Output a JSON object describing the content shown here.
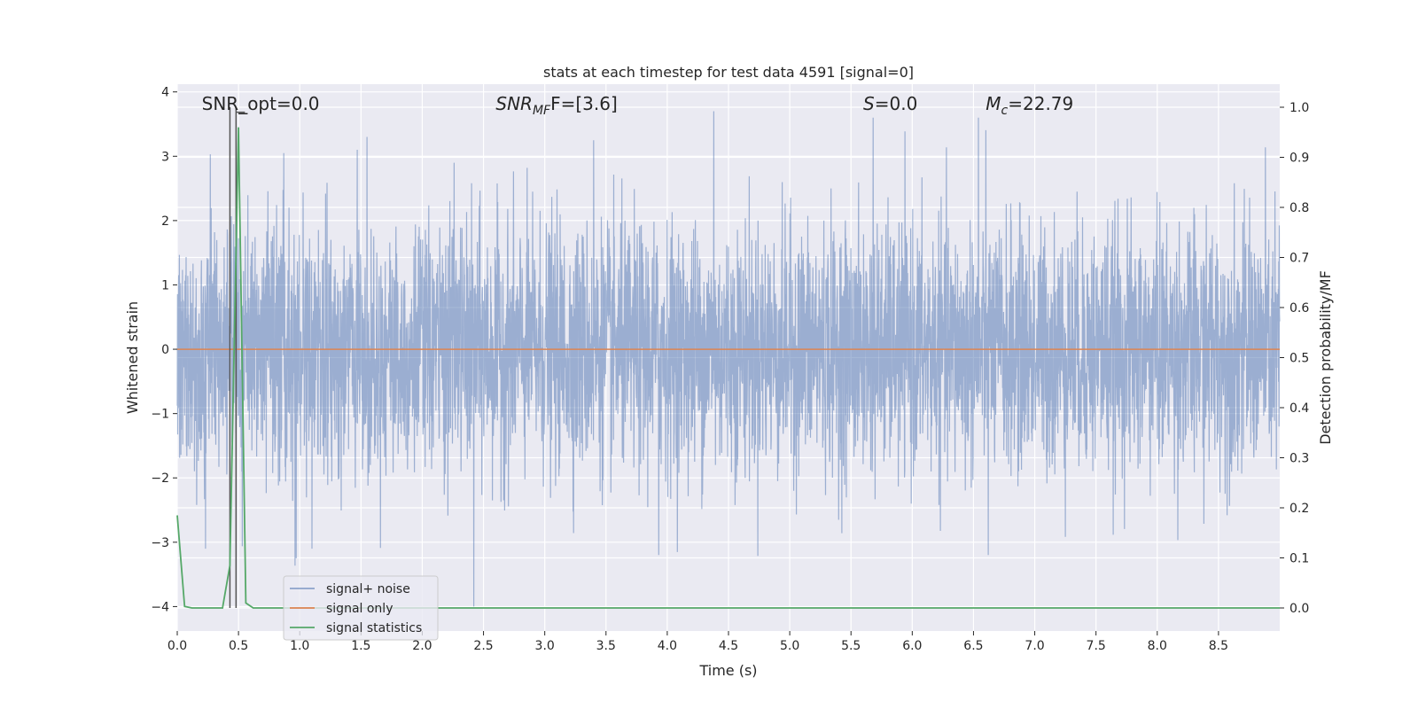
{
  "chart_data": {
    "type": "line",
    "title": "stats at each timestep for test data 4591 [signal=0]",
    "xlabel": "Time (s)",
    "ylabel": "Whitened strain",
    "y2label": "Detection probability/MF",
    "xlim": [
      0.0,
      9.0
    ],
    "ylim": [
      -4.38,
      4.12
    ],
    "y2lim": [
      -0.046,
      1.046
    ],
    "xticks": [
      0.0,
      0.5,
      1.0,
      1.5,
      2.0,
      2.5,
      3.0,
      3.5,
      4.0,
      4.5,
      5.0,
      5.5,
      6.0,
      6.5,
      7.0,
      7.5,
      8.0,
      8.5
    ],
    "yticks": [
      -4,
      -3,
      -2,
      -1,
      0,
      1,
      2,
      3,
      4
    ],
    "y2ticks": [
      0.0,
      0.1,
      0.2,
      0.3,
      0.4,
      0.5,
      0.6,
      0.7,
      0.8,
      0.9,
      1.0
    ],
    "grid": true,
    "legend_position": "lower-left",
    "annotations": [
      {
        "text": "SNR_opt=0.0",
        "x": 0.2
      },
      {
        "text": "SNR_MF=[3.6]",
        "x": 2.6
      },
      {
        "text": "S=0.0",
        "x": 5.6
      },
      {
        "text": "M_c=22.79",
        "x": 6.6
      }
    ],
    "series": [
      {
        "name": "signal+ noise",
        "color": "#4c72b0",
        "axis": "left",
        "n_samples": 4608,
        "envelope": {
          "typical_min": -1.8,
          "typical_max": 1.8,
          "peak_min": -4.0,
          "peak_max": 3.7
        },
        "peaks": [
          [
            0.27,
            3.03
          ],
          [
            0.87,
            3.05
          ],
          [
            1.47,
            3.1
          ],
          [
            1.55,
            3.3
          ],
          [
            2.26,
            2.9
          ],
          [
            3.4,
            3.25
          ],
          [
            4.38,
            3.7
          ],
          [
            5.68,
            3.6
          ],
          [
            6.54,
            3.6
          ],
          [
            2.42,
            -4.0
          ],
          [
            3.93,
            -3.2
          ],
          [
            6.62,
            -3.2
          ],
          [
            0.97,
            -3.25
          ],
          [
            1.1,
            -3.1
          ],
          [
            0.23,
            -3.1
          ]
        ]
      },
      {
        "name": "signal only",
        "color": "#dd8452",
        "axis": "left",
        "x": [
          0.0,
          9.0
        ],
        "y": [
          0.0,
          0.0
        ]
      },
      {
        "name": "signal statistics",
        "color": "#55a868",
        "axis": "right",
        "x": [
          0.0,
          0.06,
          0.12,
          0.19,
          0.25,
          0.31,
          0.37,
          0.43,
          0.5,
          0.56,
          0.62,
          0.68,
          0.75,
          1.0,
          2.0,
          3.0,
          4.0,
          5.0,
          6.0,
          7.0,
          8.0,
          9.0
        ],
        "y": [
          0.185,
          0.003,
          0.0,
          0.0,
          0.0,
          0.0,
          0.0,
          0.085,
          0.96,
          0.01,
          0.0,
          0.0,
          0.0,
          0.0,
          0.0,
          0.0,
          0.0,
          0.0,
          0.0,
          0.0,
          0.0,
          0.0
        ]
      }
    ],
    "vertical_lines": [
      {
        "x": 0.43,
        "color": "#555555"
      },
      {
        "x": 0.48,
        "color": "#555555"
      }
    ]
  }
}
